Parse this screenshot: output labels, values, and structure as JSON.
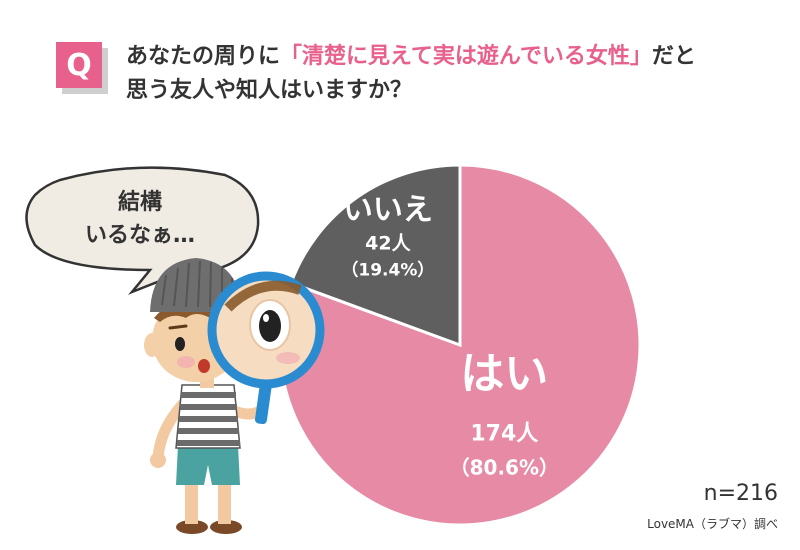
{
  "header": {
    "q_badge": "Q",
    "question_part1": "あなたの周りに",
    "question_highlight": "「清楚に見えて実は遊んでいる女性」",
    "question_part2": "だと",
    "question_line2": "思う友人や知人はいますか？"
  },
  "bubble": {
    "line1": "結構",
    "line2": "いるなぁ…"
  },
  "chart_data": {
    "type": "pie",
    "n": 216,
    "slices": [
      {
        "label": "はい",
        "count_text": "174人",
        "percent_text": "（80.6%）",
        "value": 80.6,
        "count": 174,
        "color": "#e68aa6"
      },
      {
        "label": "いいえ",
        "count_text": "42人",
        "percent_text": "（19.4%）",
        "value": 19.4,
        "count": 42,
        "color": "#5f5f5f"
      }
    ]
  },
  "footer": {
    "sample_size": "n=216",
    "source": "LoveMA（ラブマ）調べ"
  },
  "colors": {
    "accent": "#e8608c",
    "yes": "#e68aa6",
    "no": "#5f5f5f",
    "magnifier": "#2a8bd0"
  }
}
